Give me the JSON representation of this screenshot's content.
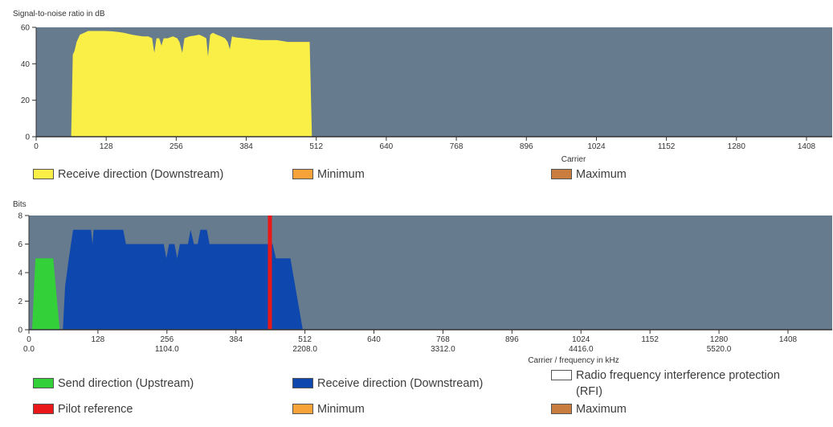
{
  "colors": {
    "plot_bg": "#667b8d",
    "downstream_snr": "#faef46",
    "upstream": "#34d03a",
    "downstream_bits": "#0e47ad",
    "pilot": "#ea1818",
    "minimum": "#f8a33a",
    "maximum": "#c97d3f",
    "rfi": "#ffffff"
  },
  "chart_data": [
    {
      "type": "area",
      "ylabel": "Signal-to-noise ratio in dB",
      "xlabel": "Carrier",
      "xlim": [
        0,
        1455
      ],
      "ylim": [
        0,
        60
      ],
      "x_ticks": [
        0,
        128,
        256,
        384,
        512,
        640,
        768,
        896,
        1024,
        1152,
        1280,
        1408
      ],
      "y_ticks": [
        0,
        20,
        40,
        60
      ],
      "grid": false,
      "series": [
        {
          "name": "Receive direction (Downstream)",
          "color": "#faef46",
          "points": [
            [
              64,
              0
            ],
            [
              67,
              45
            ],
            [
              70,
              47
            ],
            [
              74,
              52
            ],
            [
              80,
              56
            ],
            [
              88,
              57
            ],
            [
              95,
              58
            ],
            [
              110,
              58
            ],
            [
              125,
              58
            ],
            [
              140,
              57.8
            ],
            [
              150,
              57.5
            ],
            [
              160,
              57
            ],
            [
              175,
              56
            ],
            [
              185,
              55.5
            ],
            [
              195,
              55
            ],
            [
              205,
              55
            ],
            [
              212,
              54
            ],
            [
              216,
              46
            ],
            [
              220,
              54
            ],
            [
              225,
              54
            ],
            [
              229,
              50
            ],
            [
              233,
              54
            ],
            [
              240,
              54
            ],
            [
              250,
              55
            ],
            [
              258,
              54
            ],
            [
              262,
              52
            ],
            [
              267,
              46
            ],
            [
              271,
              54
            ],
            [
              280,
              55
            ],
            [
              290,
              55.5
            ],
            [
              298,
              56
            ],
            [
              305,
              55
            ],
            [
              311,
              54
            ],
            [
              314,
              44
            ],
            [
              318,
              56
            ],
            [
              323,
              57
            ],
            [
              330,
              56
            ],
            [
              338,
              55
            ],
            [
              345,
              54
            ],
            [
              350,
              52
            ],
            [
              354,
              48
            ],
            [
              358,
              55
            ],
            [
              365,
              54.5
            ],
            [
              380,
              54
            ],
            [
              395,
              53.5
            ],
            [
              410,
              53
            ],
            [
              425,
              53
            ],
            [
              440,
              53
            ],
            [
              450,
              52.5
            ],
            [
              460,
              52
            ],
            [
              475,
              52
            ],
            [
              490,
              52
            ],
            [
              500,
              52
            ],
            [
              504,
              0
            ]
          ]
        }
      ],
      "legend": [
        {
          "name": "Receive direction (Downstream)",
          "color": "#faef46"
        },
        {
          "name": "Minimum",
          "color": "#f8a33a"
        },
        {
          "name": "Maximum",
          "color": "#c97d3f"
        }
      ]
    },
    {
      "type": "area",
      "ylabel": "Bits",
      "xlabel": "Carrier / frequency in kHz",
      "xlim": [
        0,
        1490
      ],
      "ylim": [
        0,
        8
      ],
      "x_ticks": [
        0,
        128,
        256,
        384,
        512,
        640,
        768,
        896,
        1024,
        1152,
        1280,
        1408
      ],
      "freq_ticks": [
        {
          "carrier": 0,
          "label": "0.0"
        },
        {
          "carrier": 256,
          "label": "1104.0"
        },
        {
          "carrier": 512,
          "label": "2208.0"
        },
        {
          "carrier": 768,
          "label": "3312.0"
        },
        {
          "carrier": 1024,
          "label": "4416.0"
        },
        {
          "carrier": 1280,
          "label": "5520.0"
        }
      ],
      "y_ticks": [
        0,
        2,
        4,
        6,
        8
      ],
      "grid": false,
      "series": [
        {
          "name": "Send direction (Upstream)",
          "color": "#34d03a",
          "points": [
            [
              6,
              0
            ],
            [
              12,
              5
            ],
            [
              45,
              5
            ],
            [
              57,
              0
            ]
          ]
        },
        {
          "name": "Receive direction (Downstream)",
          "color": "#0e47ad",
          "points": [
            [
              63,
              0
            ],
            [
              67,
              3
            ],
            [
              74,
              5
            ],
            [
              82,
              7
            ],
            [
              115,
              7
            ],
            [
              118,
              6
            ],
            [
              120,
              7
            ],
            [
              155,
              7
            ],
            [
              175,
              7
            ],
            [
              180,
              6
            ],
            [
              200,
              6
            ],
            [
              250,
              6
            ],
            [
              255,
              5
            ],
            [
              260,
              6
            ],
            [
              270,
              6
            ],
            [
              275,
              5
            ],
            [
              280,
              6
            ],
            [
              295,
              6
            ],
            [
              300,
              7
            ],
            [
              306,
              6
            ],
            [
              313,
              6
            ],
            [
              318,
              7
            ],
            [
              330,
              7
            ],
            [
              335,
              6
            ],
            [
              340,
              6
            ],
            [
              380,
              6
            ],
            [
              440,
              6
            ],
            [
              452,
              6
            ],
            [
              458,
              5
            ],
            [
              470,
              5
            ],
            [
              475,
              5
            ],
            [
              485,
              5
            ],
            [
              508,
              0
            ]
          ]
        },
        {
          "name": "Pilot reference",
          "color": "#ea1818",
          "line_at": 447
        }
      ],
      "legend": [
        {
          "name": "Send direction (Upstream)",
          "color": "#34d03a"
        },
        {
          "name": "Receive direction (Downstream)",
          "color": "#0e47ad"
        },
        {
          "name": "Radio frequency interference protection (RFI)",
          "color": "#ffffff"
        },
        {
          "name": "Pilot reference",
          "color": "#ea1818"
        },
        {
          "name": "Minimum",
          "color": "#f8a33a"
        },
        {
          "name": "Maximum",
          "color": "#c97d3f"
        }
      ]
    }
  ]
}
